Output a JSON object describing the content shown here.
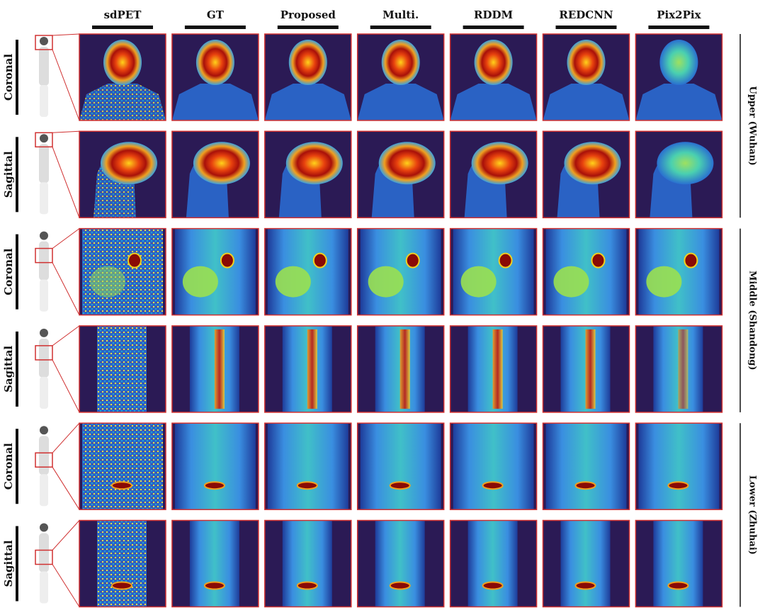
{
  "columns": [
    "sdPET",
    "GT",
    "Proposed",
    "Multi.",
    "RDDM",
    "REDCNN",
    "Pix2Pix"
  ],
  "rows": [
    {
      "label": "Coronal"
    },
    {
      "label": "Sagittal"
    },
    {
      "label": "Coronal"
    },
    {
      "label": "Sagittal"
    },
    {
      "label": "Coronal"
    },
    {
      "label": "Sagittal"
    }
  ],
  "groups": [
    "Upper (Wuhan)",
    "Middle (Shandong)",
    "Lower (Zhuhai)"
  ]
}
